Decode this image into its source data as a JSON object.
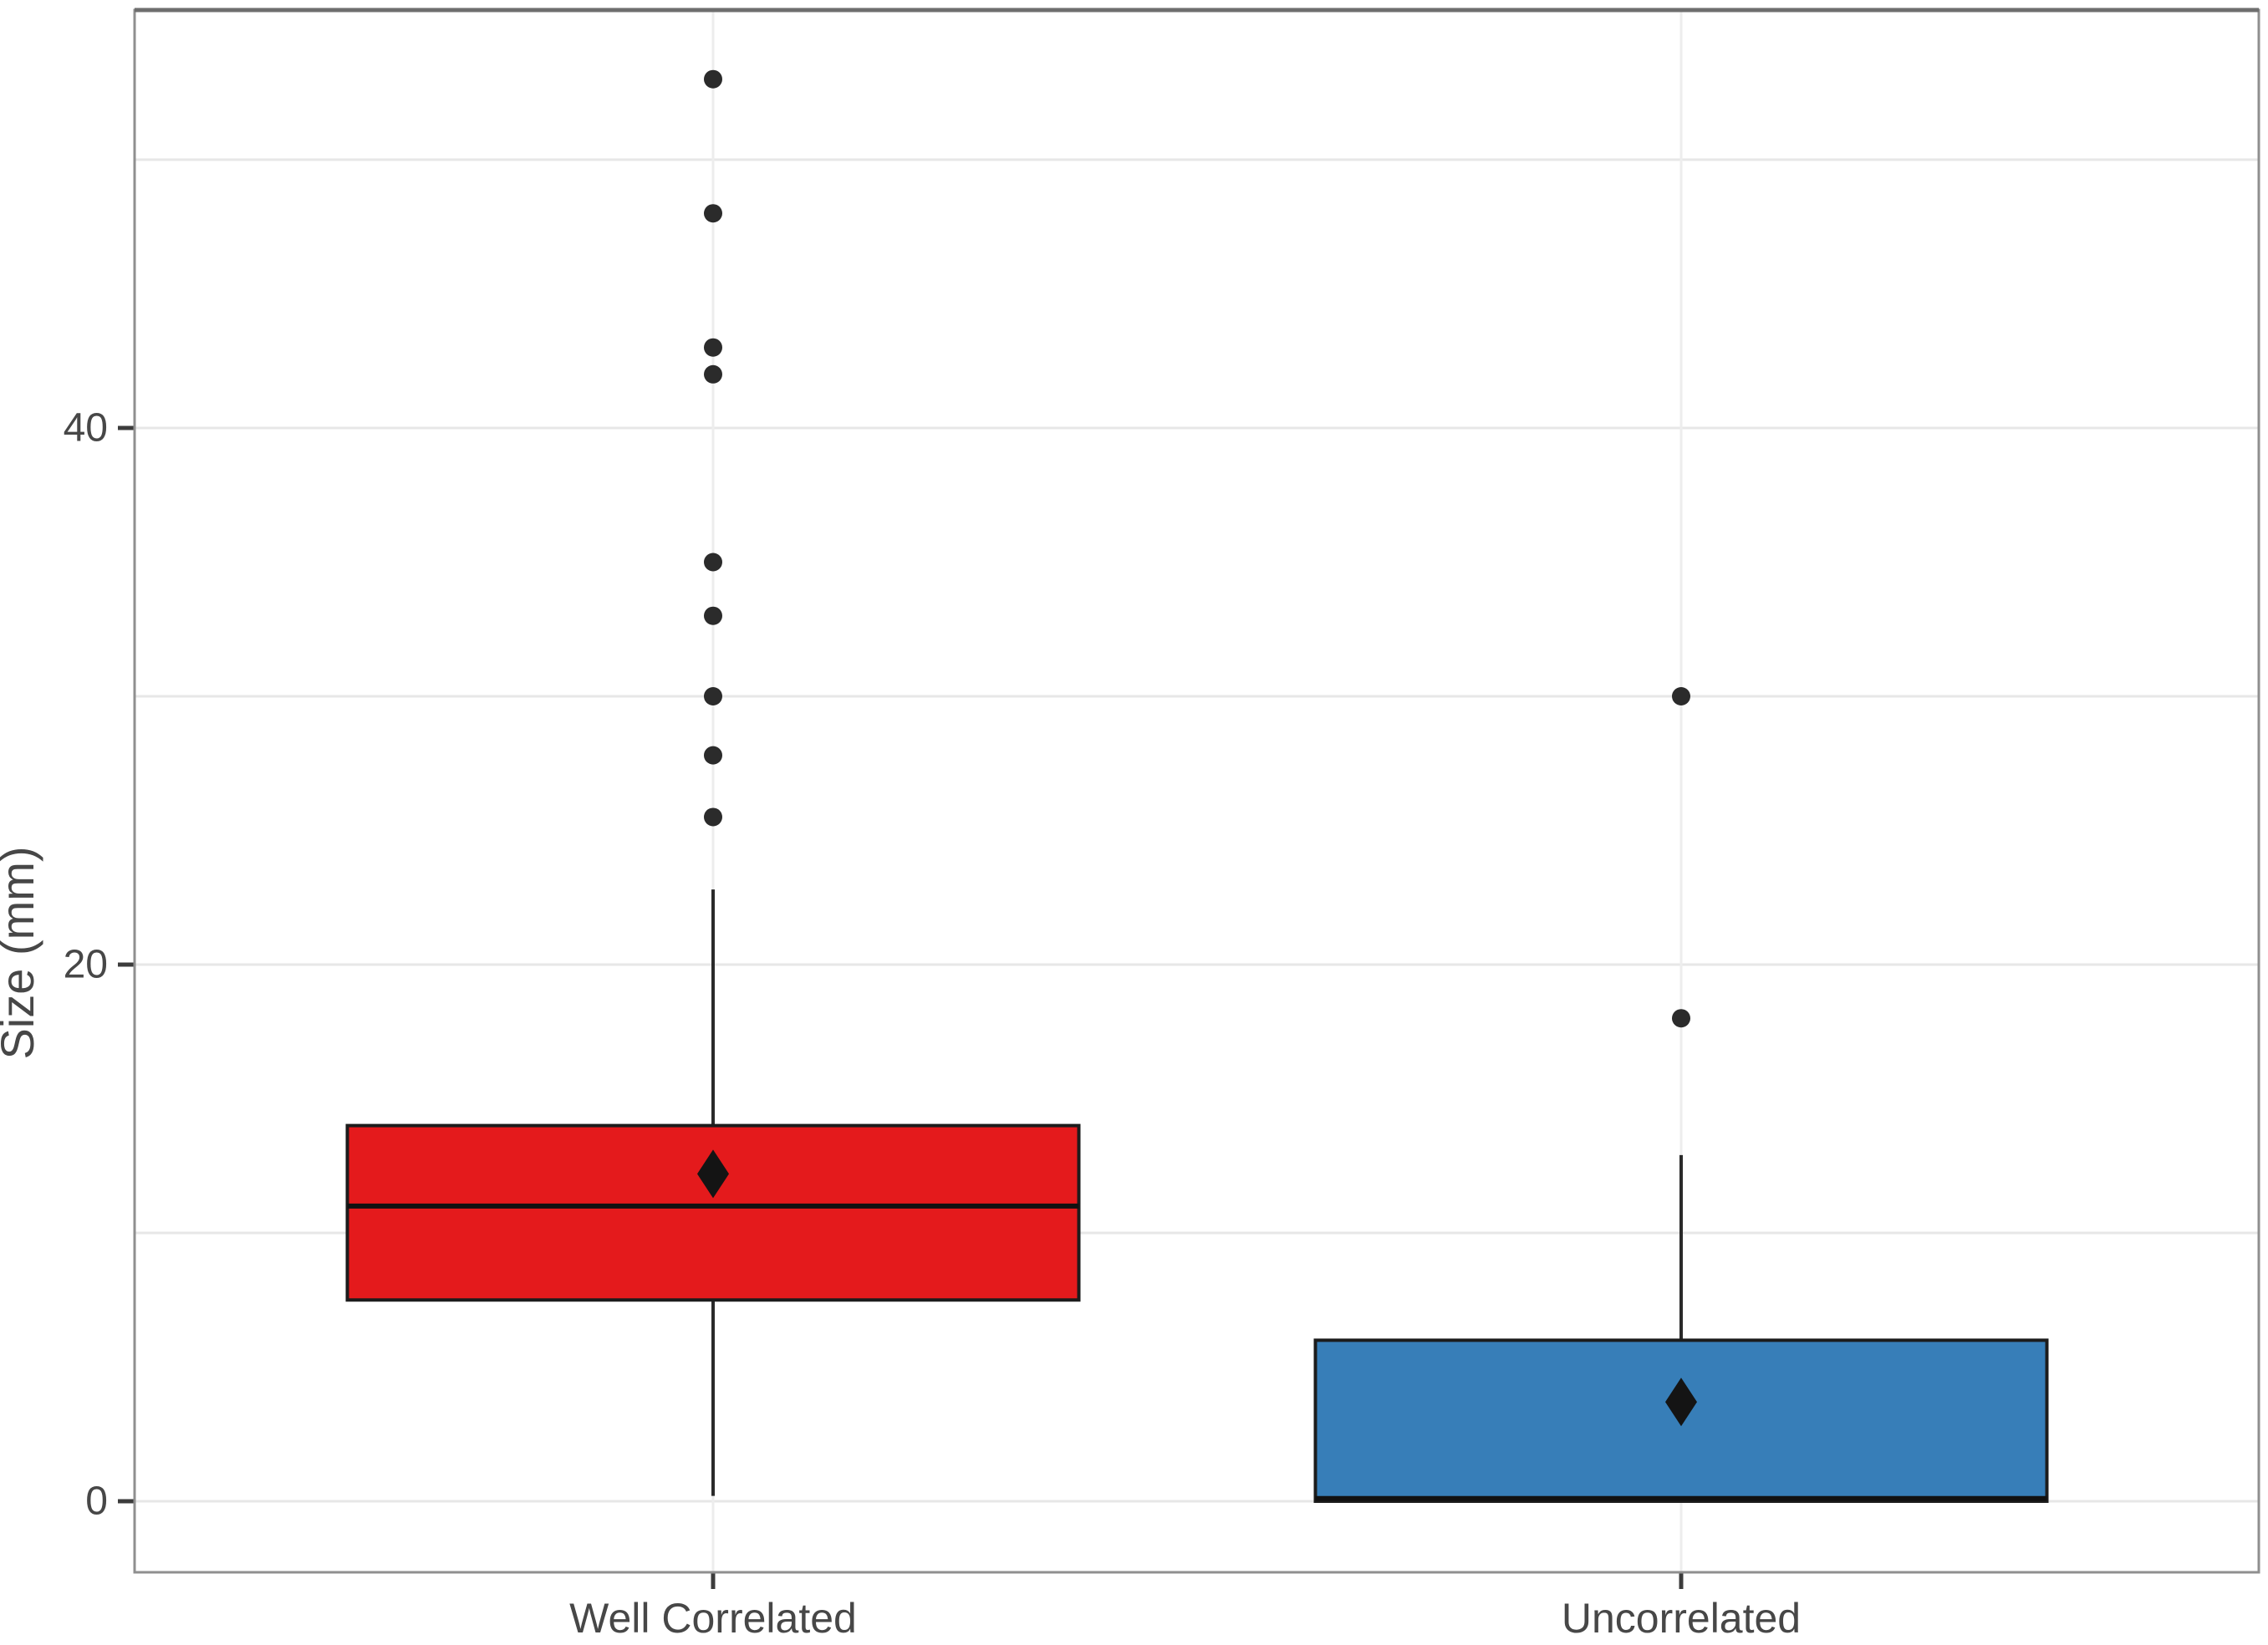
{
  "figure": {
    "background": "#ffffff"
  },
  "chart_data": {
    "type": "boxplot",
    "title": "",
    "xlabel": "",
    "ylabel": "Size (mm)",
    "categories": [
      "Well Correlated",
      "Uncorrelated"
    ],
    "ylim": [
      -2.6,
      55.6
    ],
    "yticks": [
      0,
      20,
      40
    ],
    "gridlines": [
      0,
      10,
      20,
      30,
      40,
      50
    ],
    "grid": "horizontal lines at every 10 units, faint vertical line at each category",
    "legend": "none",
    "series": [
      {
        "name": "Well Correlated",
        "fill": "#e41a1c",
        "q1": 7.5,
        "median": 11.0,
        "q3": 14.0,
        "whisker_low": 0.2,
        "whisker_high": 22.8,
        "mean": 12.2,
        "outliers": [
          25.5,
          27.8,
          30,
          33,
          35,
          42,
          43,
          48,
          53
        ]
      },
      {
        "name": "Uncorrelated",
        "fill": "#377eb8",
        "q1": 0.0,
        "median": 0.1,
        "q3": 6.0,
        "whisker_low": 0.0,
        "whisker_high": 12.9,
        "mean": 3.7,
        "outliers": [
          18,
          30
        ]
      }
    ],
    "style": {
      "box_border": "#1c1c1c",
      "median_color": "#111111",
      "whisker_color": "#2a2a2a",
      "outlier_color": "#2b2b2b",
      "mean_marker": "diamond",
      "mean_color": "#141414",
      "gridline_color": "#e7e7e7",
      "minor_vgrid_color": "#ededed",
      "panel_border": "#8f8f8f",
      "panel_border_top": "#6e6e6e",
      "tick_color": "#3c3c3c",
      "label_color": "#474747"
    }
  }
}
